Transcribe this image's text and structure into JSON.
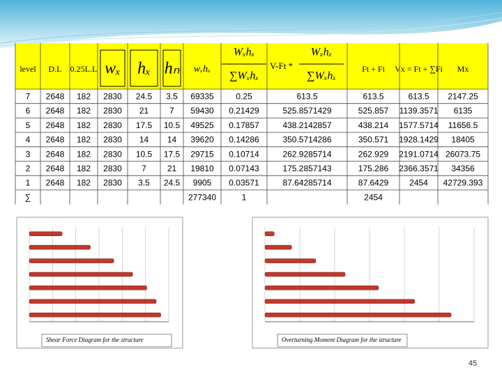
{
  "table": {
    "header": [
      "level",
      "D.L",
      "0.25L.L",
      "wₓ",
      "hₓ",
      "hₙ",
      "wₓhₓ",
      {
        "numerator": "Wₓhₓ",
        "denominator": "∑Wₓhₓ"
      },
      {
        "text": "V-Ft *",
        "numerator": "Wₓhₓ",
        "denominator": "∑Wₓhₓ"
      },
      "Ft + Fi",
      "Vx = Ft + ∑Fi",
      "Mx"
    ],
    "rows": [
      [
        "7",
        "2648",
        "182",
        "2830",
        "24.5",
        "3.5",
        "69335",
        "0.25",
        "613.5",
        "613.5",
        "613.5",
        "2147.25"
      ],
      [
        "6",
        "2648",
        "182",
        "2830",
        "21",
        "7",
        "59430",
        "0.21429",
        "525.8571429",
        "525.857",
        "1139.3571",
        "6135"
      ],
      [
        "5",
        "2648",
        "182",
        "2830",
        "17.5",
        "10.5",
        "49525",
        "0.17857",
        "438.2142857",
        "438.214",
        "1577.5714",
        "11656.5"
      ],
      [
        "4",
        "2648",
        "182",
        "2830",
        "14",
        "14",
        "39620",
        "0.14286",
        "350.5714286",
        "350.571",
        "1928.1429",
        "18405"
      ],
      [
        "3",
        "2648",
        "182",
        "2830",
        "10.5",
        "17.5",
        "29715",
        "0.10714",
        "262.9285714",
        "262.929",
        "2191.0714",
        "26073.75"
      ],
      [
        "2",
        "2648",
        "182",
        "2830",
        "7",
        "21",
        "19810",
        "0.07143",
        "175.2857143",
        "175.286",
        "2366.3571",
        "34356"
      ],
      [
        "1",
        "2648",
        "182",
        "2830",
        "3.5",
        "24.5",
        "9905",
        "0.03571",
        "87.64285714",
        "87.6429",
        "2454",
        "42729.393"
      ],
      [
        "∑",
        null,
        null,
        null,
        null,
        null,
        "277340",
        "1",
        null,
        "2454",
        null,
        null
      ]
    ]
  },
  "charts": [
    {
      "type": "bar",
      "caption": "Shear Force Diagram for the structure",
      "color": "#c0392b",
      "values": [
        613.5,
        1139.3571,
        1577.5714,
        1928.1429,
        2191.0714,
        2366.3571,
        2454
      ],
      "xlim": [
        0,
        2600
      ]
    },
    {
      "type": "bar",
      "caption": "Overturning Moment Diagram for the structure",
      "color": "#c0392b",
      "values": [
        2147.25,
        6135,
        11656.5,
        18405,
        26073.75,
        34356,
        42729.393
      ],
      "xlim": [
        0,
        48000
      ]
    }
  ],
  "page_number": "45"
}
